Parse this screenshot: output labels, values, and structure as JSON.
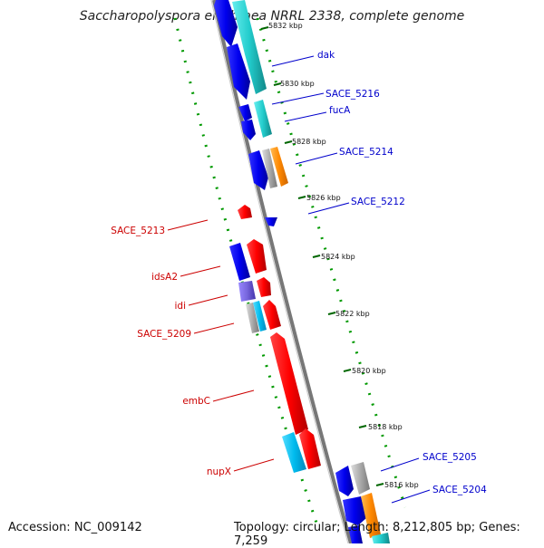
{
  "title": "Saccharopolyspora erythraea NRRL 2338, complete genome",
  "footer": {
    "accession": "Accession: NC_009142",
    "summary": "Topology: circular; Length: 8,212,805 bp; Genes: 7,259"
  },
  "colors": {
    "forward": "#ff0000",
    "reverse": "#0000ee",
    "cyan": "#22cccc",
    "gray": "#a8a8a8",
    "orange": "#ff8800",
    "purple": "#7766dd",
    "backbone": "#888888",
    "tick": "#007700",
    "label_blue": "#0000cc",
    "label_red": "#cc0000"
  },
  "kbp_ticks": [
    "5832 kbp",
    "5830 kbp",
    "5828 kbp",
    "5826 kbp",
    "5824 kbp",
    "5822 kbp",
    "5820 kbp",
    "5818 kbp",
    "5816 kbp"
  ],
  "genes_right": [
    "dak",
    "SACE_5216",
    "fucA",
    "SACE_5214",
    "SACE_5212",
    "SACE_5205",
    "SACE_5204"
  ],
  "genes_left": [
    "SACE_5213",
    "idsA2",
    "idi",
    "SACE_5209",
    "embC",
    "nupX"
  ]
}
